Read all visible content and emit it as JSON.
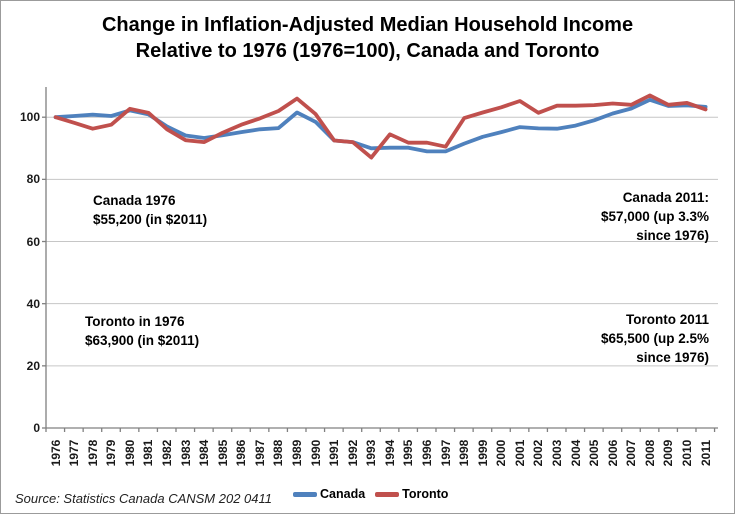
{
  "chart_data": {
    "type": "line",
    "title": "Change in Inflation-Adjusted Median Household Income Relative to 1976 (1976=100), Canada and Toronto",
    "title_lines": [
      "Change in Inflation-Adjusted Median Household Income",
      "Relative to 1976 (1976=100), Canada and Toronto"
    ],
    "x": [
      1976,
      1977,
      1978,
      1979,
      1980,
      1981,
      1982,
      1983,
      1984,
      1985,
      1986,
      1987,
      1988,
      1989,
      1990,
      1991,
      1992,
      1993,
      1994,
      1995,
      1996,
      1997,
      1998,
      1999,
      2000,
      2001,
      2002,
      2003,
      2004,
      2005,
      2006,
      2007,
      2008,
      2009,
      2010,
      2011
    ],
    "series": [
      {
        "name": "Canada",
        "color": "#4F81BD",
        "values": [
          100,
          100.4,
          100.8,
          100.4,
          102.2,
          100.9,
          97.0,
          94.1,
          93.3,
          94.2,
          95.2,
          96.1,
          96.5,
          101.5,
          98.5,
          92.5,
          92.0,
          90.0,
          90.2,
          90.2,
          89.0,
          89.0,
          91.5,
          93.7,
          95.2,
          96.8,
          96.4,
          96.3,
          97.3,
          99.0,
          101.2,
          102.8,
          105.6,
          103.6,
          103.8,
          103.3
        ]
      },
      {
        "name": "Toronto",
        "color": "#C0504D",
        "values": [
          100,
          98.2,
          96.3,
          97.6,
          102.7,
          101.4,
          96.1,
          92.6,
          92.0,
          95.0,
          97.6,
          99.6,
          102.0,
          106.0,
          101.0,
          92.5,
          92.0,
          87.0,
          94.5,
          91.8,
          91.8,
          90.5,
          99.7,
          101.5,
          103.2,
          105.2,
          101.4,
          103.7,
          103.7,
          103.9,
          104.4,
          104.0,
          107.0,
          104.0,
          104.6,
          102.5
        ]
      }
    ],
    "ylim": [
      0,
      110
    ],
    "yticks": [
      0,
      20,
      40,
      60,
      80,
      100
    ],
    "grid": true,
    "legend_position": "bottom",
    "gridline_color": "#C6C6C6",
    "axis_color": "#808080",
    "annotations": [
      {
        "id": "canada-1976",
        "align": "left",
        "lines": [
          "Canada 1976",
          "$55,200 (in $2011)"
        ]
      },
      {
        "id": "toronto-1976",
        "align": "left",
        "lines": [
          "Toronto in 1976",
          "$63,900 (in $2011)"
        ]
      },
      {
        "id": "canada-2011",
        "align": "right",
        "lines": [
          "Canada 2011:",
          "$57,000 (up 3.3%",
          "since 1976)"
        ]
      },
      {
        "id": "toronto-2011",
        "align": "right",
        "lines": [
          "Toronto 2011",
          "$65,500 (up 2.5%",
          "since 1976)"
        ]
      }
    ],
    "source": "Source: Statistics Canada CANSM 202 0411"
  }
}
